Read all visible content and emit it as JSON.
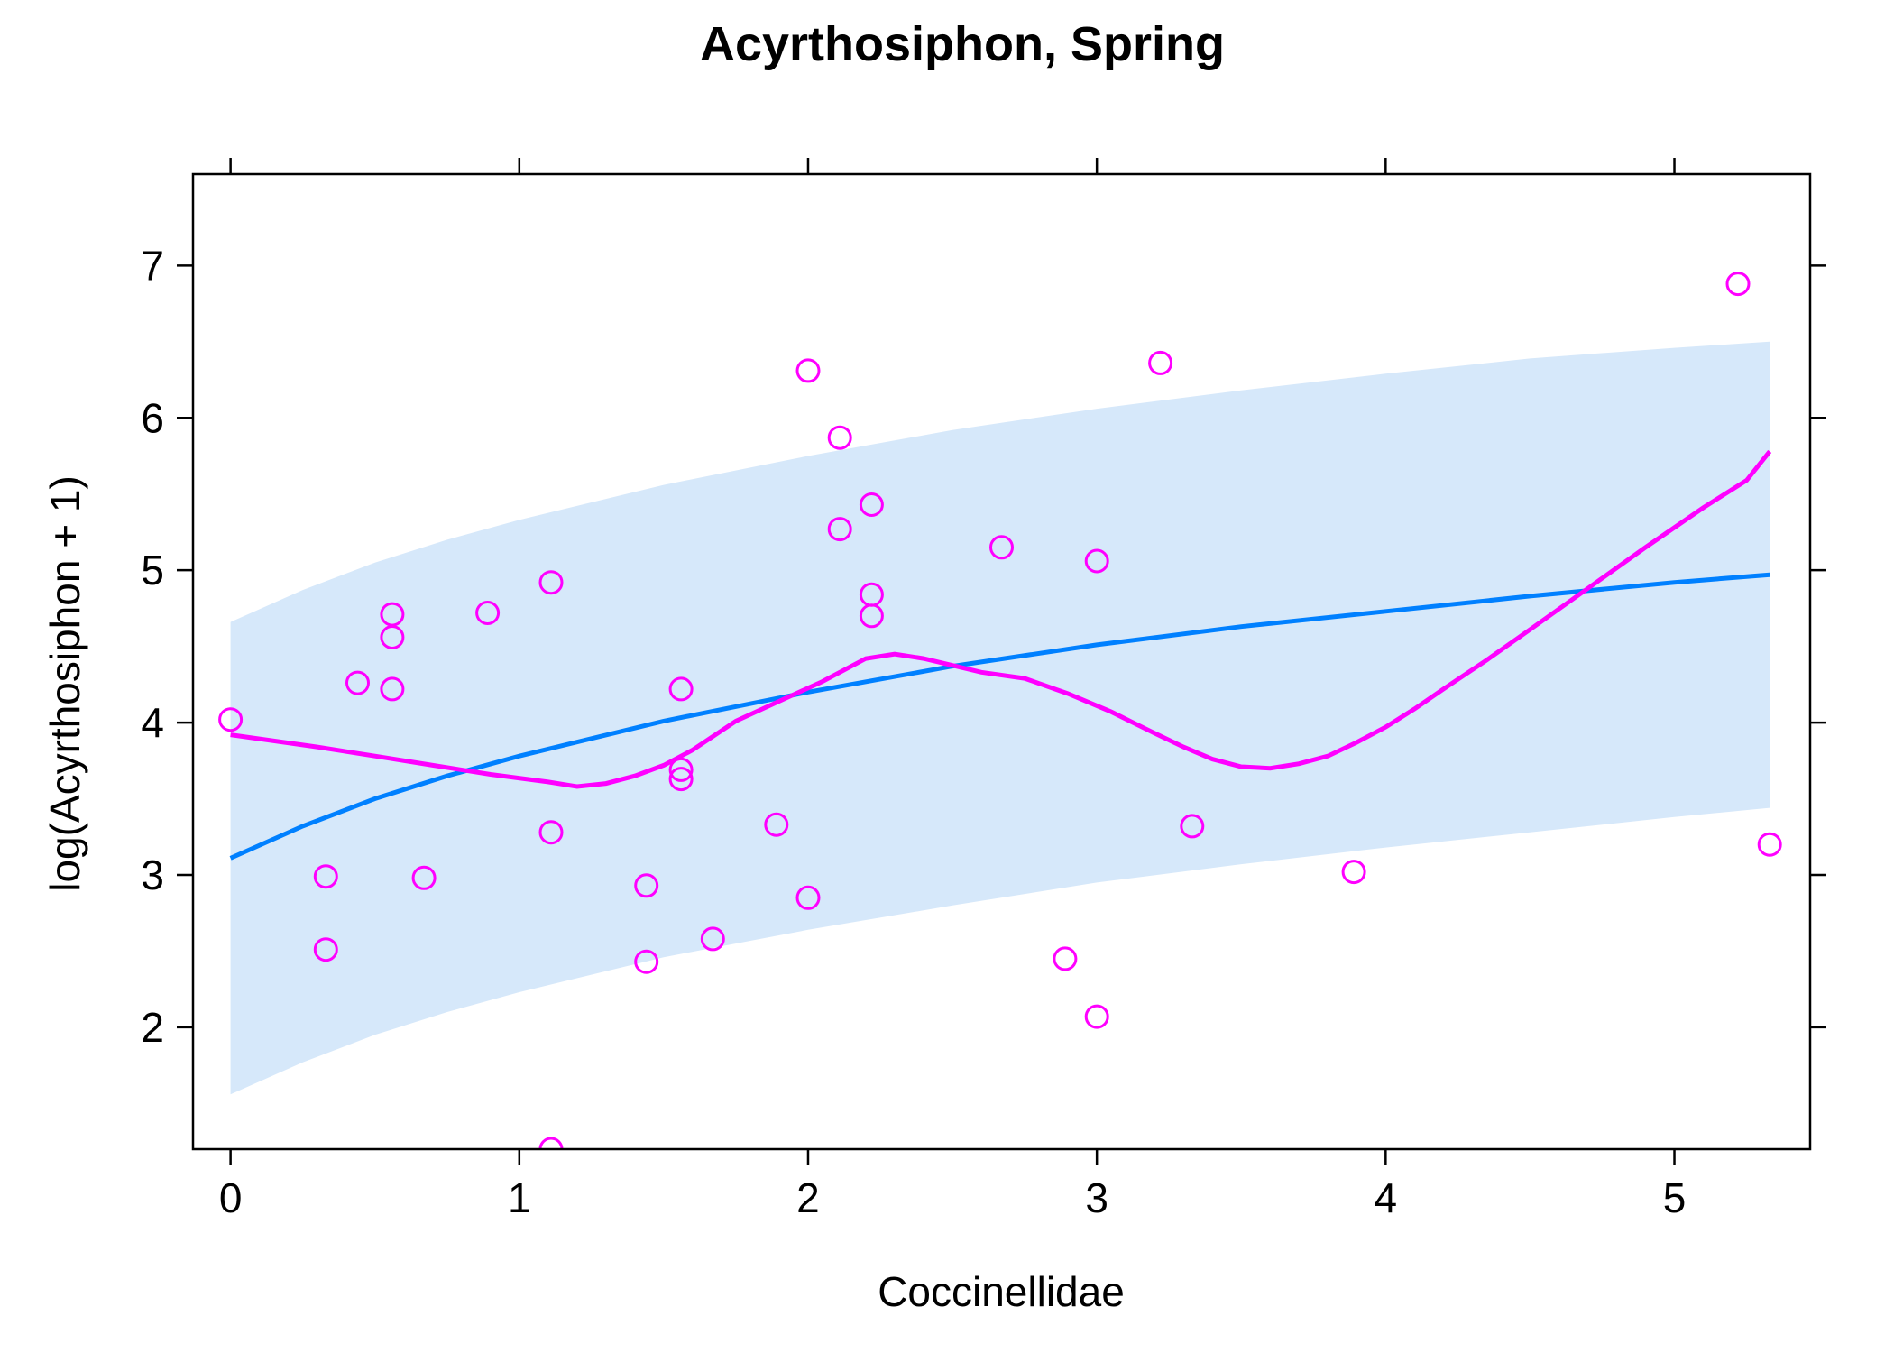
{
  "chart_data": {
    "type": "scatter",
    "title": "Acyrthosiphon, Spring",
    "xlabel": "Coccinellidae",
    "ylabel": "log(Acyrthosiphon + 1)",
    "xlim": [
      -0.13,
      5.47
    ],
    "ylim": [
      1.2,
      7.6
    ],
    "x_ticks": [
      0,
      1,
      2,
      3,
      4,
      5
    ],
    "y_ticks": [
      2,
      3,
      4,
      5,
      6,
      7
    ],
    "grid": false,
    "colors": {
      "points": "#ff00ff",
      "smoother": "#ff00ff",
      "fit": "#0080ff",
      "band": "#d6e8fa",
      "frame": "#000000"
    },
    "points": [
      {
        "x": 0.0,
        "y": 4.02
      },
      {
        "x": 0.33,
        "y": 2.99
      },
      {
        "x": 0.33,
        "y": 2.51
      },
      {
        "x": 0.44,
        "y": 4.26
      },
      {
        "x": 0.56,
        "y": 4.71
      },
      {
        "x": 0.56,
        "y": 4.56
      },
      {
        "x": 0.56,
        "y": 4.22
      },
      {
        "x": 0.67,
        "y": 2.98
      },
      {
        "x": 0.89,
        "y": 4.72
      },
      {
        "x": 1.11,
        "y": 4.92
      },
      {
        "x": 1.11,
        "y": 3.28
      },
      {
        "x": 1.11,
        "y": 1.2
      },
      {
        "x": 1.44,
        "y": 2.93
      },
      {
        "x": 1.44,
        "y": 2.43
      },
      {
        "x": 1.56,
        "y": 4.22
      },
      {
        "x": 1.56,
        "y": 3.69
      },
      {
        "x": 1.56,
        "y": 3.63
      },
      {
        "x": 1.67,
        "y": 2.58
      },
      {
        "x": 1.89,
        "y": 3.33
      },
      {
        "x": 2.0,
        "y": 6.31
      },
      {
        "x": 2.0,
        "y": 2.85
      },
      {
        "x": 2.11,
        "y": 5.87
      },
      {
        "x": 2.11,
        "y": 5.27
      },
      {
        "x": 2.22,
        "y": 5.43
      },
      {
        "x": 2.22,
        "y": 4.84
      },
      {
        "x": 2.22,
        "y": 4.7
      },
      {
        "x": 2.67,
        "y": 5.15
      },
      {
        "x": 2.89,
        "y": 2.45
      },
      {
        "x": 3.0,
        "y": 5.06
      },
      {
        "x": 3.0,
        "y": 2.07
      },
      {
        "x": 3.22,
        "y": 6.36
      },
      {
        "x": 3.33,
        "y": 3.32
      },
      {
        "x": 3.89,
        "y": 3.02
      },
      {
        "x": 5.22,
        "y": 6.88
      },
      {
        "x": 5.33,
        "y": 3.2
      }
    ],
    "fit_line": {
      "x": [
        0.0,
        0.25,
        0.5,
        0.75,
        1.0,
        1.5,
        2.0,
        2.5,
        3.0,
        3.5,
        4.0,
        4.5,
        5.0,
        5.33
      ],
      "y": [
        3.11,
        3.32,
        3.5,
        3.65,
        3.78,
        4.01,
        4.2,
        4.37,
        4.51,
        4.63,
        4.73,
        4.83,
        4.92,
        4.97
      ],
      "lower": [
        1.56,
        1.77,
        1.95,
        2.1,
        2.23,
        2.46,
        2.64,
        2.8,
        2.95,
        3.07,
        3.18,
        3.28,
        3.38,
        3.44
      ],
      "upper": [
        4.66,
        4.87,
        5.05,
        5.2,
        5.33,
        5.56,
        5.75,
        5.92,
        6.06,
        6.18,
        6.29,
        6.39,
        6.46,
        6.5
      ]
    },
    "smoother": {
      "x": [
        0.0,
        0.3,
        0.5,
        0.7,
        0.9,
        1.1,
        1.2,
        1.3,
        1.4,
        1.5,
        1.6,
        1.75,
        1.9,
        2.05,
        2.2,
        2.3,
        2.4,
        2.6,
        2.75,
        2.9,
        3.05,
        3.2,
        3.3,
        3.4,
        3.5,
        3.6,
        3.7,
        3.8,
        3.9,
        4.0,
        4.1,
        4.2,
        4.35,
        4.5,
        4.7,
        4.9,
        5.1,
        5.25,
        5.33
      ],
      "y": [
        3.92,
        3.84,
        3.78,
        3.72,
        3.66,
        3.61,
        3.58,
        3.6,
        3.65,
        3.72,
        3.82,
        4.01,
        4.14,
        4.27,
        4.42,
        4.45,
        4.42,
        4.33,
        4.29,
        4.19,
        4.07,
        3.93,
        3.84,
        3.76,
        3.71,
        3.7,
        3.73,
        3.78,
        3.87,
        3.97,
        4.09,
        4.22,
        4.41,
        4.61,
        4.88,
        5.15,
        5.41,
        5.59,
        5.78
      ]
    }
  }
}
